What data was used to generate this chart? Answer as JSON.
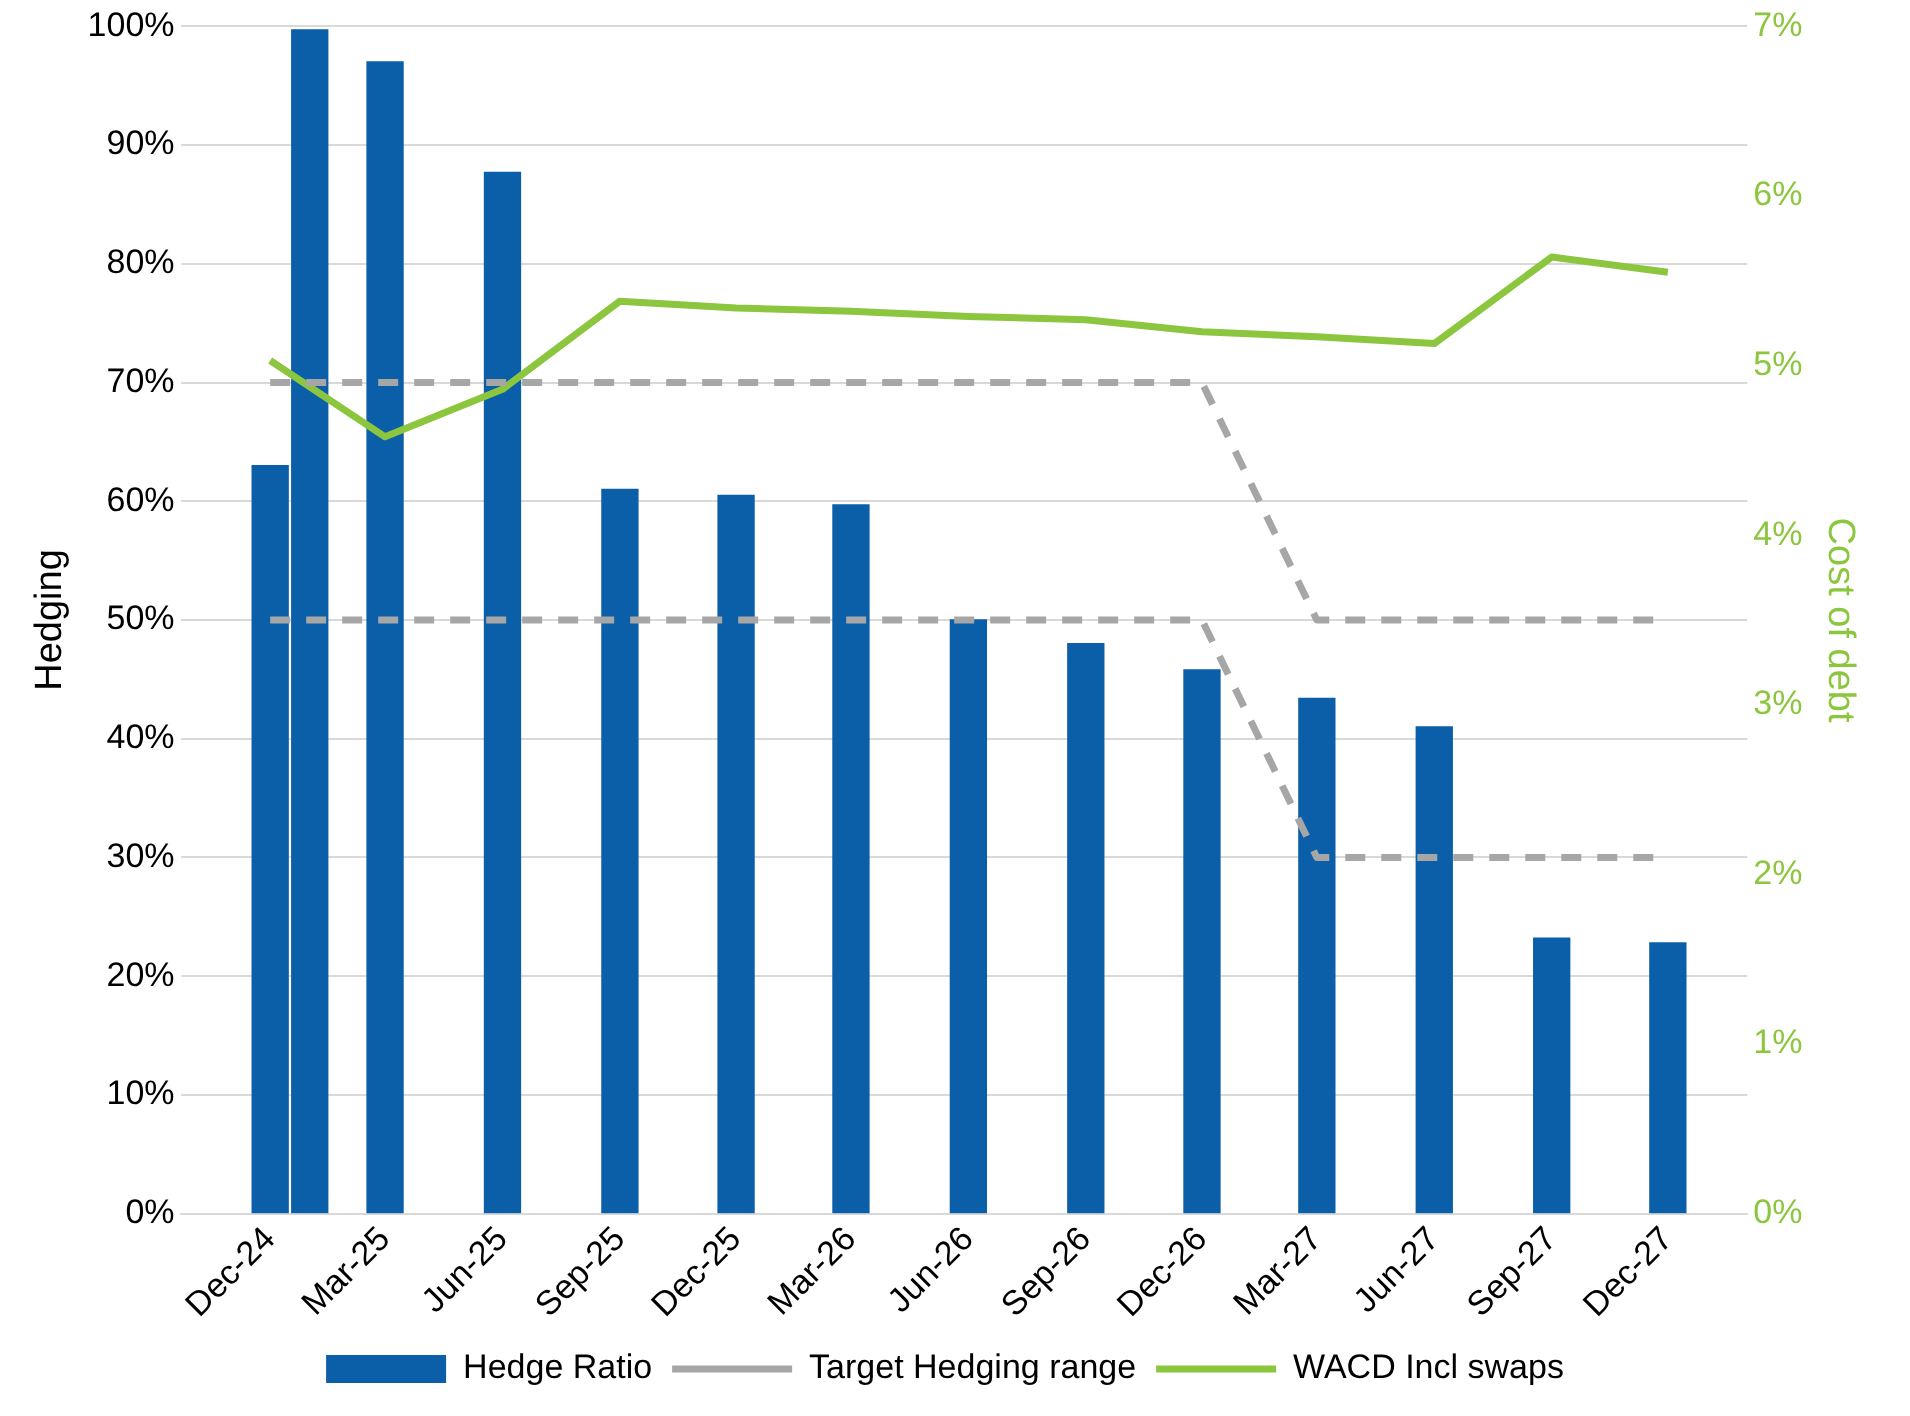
{
  "chart_data": {
    "type": "bar",
    "ylabel": "Hedging",
    "y2label": "Cost of debt",
    "x": [
      "2024-12",
      "2025-01",
      "2025-03",
      "2025-06",
      "2025-09",
      "2025-12",
      "2026-03",
      "2026-06",
      "2026-09",
      "2026-12",
      "2027-03",
      "2027-06",
      "2027-09",
      "2027-12"
    ],
    "xlim": [
      "2024-11-08",
      "2027-12-16"
    ],
    "xticks": [
      {
        "value": "2024-12",
        "label": "Dec-24"
      },
      {
        "value": "2025-03",
        "label": "Mar-25"
      },
      {
        "value": "2025-06",
        "label": "Jun-25"
      },
      {
        "value": "2025-09",
        "label": "Sep-25"
      },
      {
        "value": "2025-12",
        "label": "Dec-25"
      },
      {
        "value": "2026-03",
        "label": "Mar-26"
      },
      {
        "value": "2026-06",
        "label": "Jun-26"
      },
      {
        "value": "2026-09",
        "label": "Sep-26"
      },
      {
        "value": "2026-12",
        "label": "Dec-26"
      },
      {
        "value": "2027-03",
        "label": "Mar-27"
      },
      {
        "value": "2027-06",
        "label": "Jun-27"
      },
      {
        "value": "2027-09",
        "label": "Sep-27"
      },
      {
        "value": "2027-12",
        "label": "Dec-27"
      }
    ],
    "ylim": [
      0,
      100
    ],
    "yticks": [
      {
        "value": 0,
        "label": "0%"
      },
      {
        "value": 10,
        "label": "10%"
      },
      {
        "value": 20,
        "label": "20%"
      },
      {
        "value": 30,
        "label": "30%"
      },
      {
        "value": 40,
        "label": "40%"
      },
      {
        "value": 50,
        "label": "50%"
      },
      {
        "value": 60,
        "label": "60%"
      },
      {
        "value": 70,
        "label": "70%"
      },
      {
        "value": 80,
        "label": "80%"
      },
      {
        "value": 90,
        "label": "90%"
      },
      {
        "value": 100,
        "label": "100%"
      }
    ],
    "y2lim": [
      0,
      7
    ],
    "y2ticks": [
      {
        "value": 0,
        "label": "0%"
      },
      {
        "value": 1,
        "label": "1%"
      },
      {
        "value": 2,
        "label": "2%"
      },
      {
        "value": 3,
        "label": "3%"
      },
      {
        "value": 4,
        "label": "4%"
      },
      {
        "value": 5,
        "label": "5%"
      },
      {
        "value": 6,
        "label": "6%"
      },
      {
        "value": 7,
        "label": "7%"
      }
    ],
    "grid": "y",
    "legend": "bottom",
    "series": [
      {
        "name": "Hedge Ratio",
        "color": "#0b5ea8",
        "values": [
          63,
          99.7,
          97,
          87.7,
          61,
          60.5,
          59.7,
          50,
          48,
          45.8,
          43.4,
          41,
          23.2,
          22.8
        ]
      },
      {
        "name": "Target Hedging range",
        "type": "line",
        "line_style": "dashed",
        "color": "#a6a6a6",
        "x": [
          "2024-12",
          "2026-12",
          "2027-03",
          "2027-12"
        ],
        "values": [
          70,
          70,
          50,
          50
        ]
      },
      {
        "type": "line",
        "line_style": "dashed",
        "color": "#a6a6a6",
        "x": [
          "2024-12",
          "2026-12",
          "2027-03",
          "2027-12"
        ],
        "values": [
          50,
          50,
          30,
          30
        ]
      },
      {
        "name": "WACD Incl swaps",
        "type": "line",
        "axis": "y2",
        "line_style": "solid",
        "color": "#8cc63f",
        "x": [
          "2024-12",
          "2025-03",
          "2025-06",
          "2025-09",
          "2025-12",
          "2026-03",
          "2026-06",
          "2026-09",
          "2026-12",
          "2027-03",
          "2027-06",
          "2027-09",
          "2027-12"
        ],
        "values": [
          5.03,
          4.58,
          4.86,
          5.38,
          5.34,
          5.32,
          5.29,
          5.27,
          5.2,
          5.17,
          5.13,
          5.64,
          5.55
        ]
      }
    ]
  }
}
